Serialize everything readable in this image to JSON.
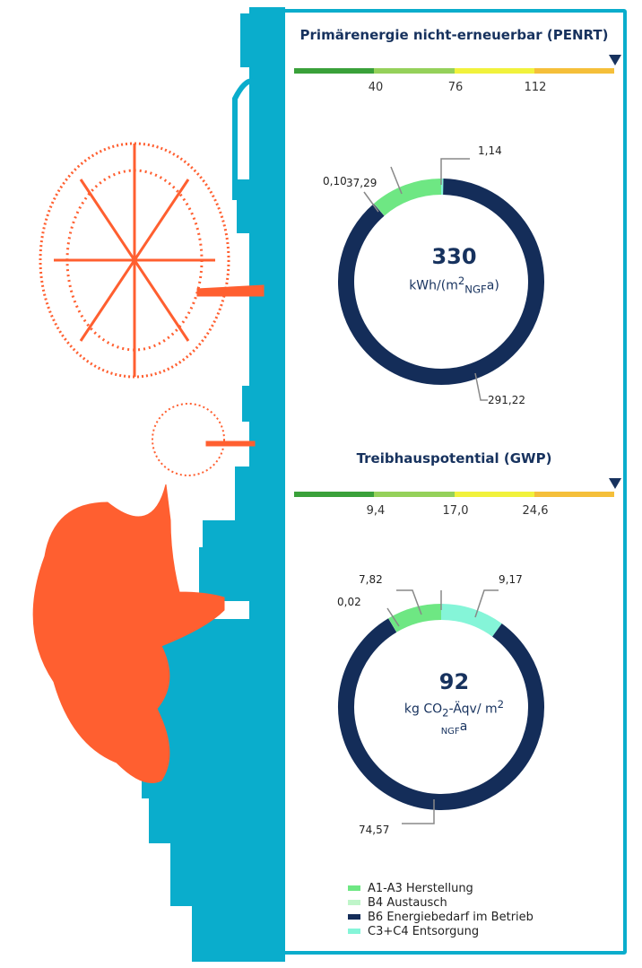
{
  "colors": {
    "a1_a3": "#6ee783",
    "b4": "#bff5c9",
    "b6": "#142d59",
    "c3_c4": "#85f5d8",
    "accent": "#0aadcc",
    "tree": "#ff5f30",
    "scale": [
      "#3aa13a",
      "#95d15a",
      "#f1f23c",
      "#f5bf3a"
    ]
  },
  "chart_data": [
    {
      "type": "donut",
      "title": "Primärenergie nicht-erneuerbar (PENRT)",
      "scale_ticks": [
        "40",
        "76",
        "112"
      ],
      "total_value": "330",
      "unit_main": "kWh/(m",
      "unit_sup": "2",
      "unit_sub": "NGF",
      "unit_tail": "a)",
      "series": [
        {
          "name": "A1-A3 Herstellung",
          "value": 37.29,
          "label": "37,29"
        },
        {
          "name": "B4 Austausch",
          "value": 0.1,
          "label": "0,10"
        },
        {
          "name": "B6 Energiebedarf im Betrieb",
          "value": 291.22,
          "label": "291,22"
        },
        {
          "name": "C3+C4 Entsorgung",
          "value": 1.14,
          "label": "1,14"
        }
      ]
    },
    {
      "type": "donut",
      "title": "Treibhauspotential (GWP)",
      "scale_ticks": [
        "9,4",
        "17,0",
        "24,6"
      ],
      "total_value": "92",
      "unit_line1": "kg CO",
      "unit_co2sub": "2",
      "unit_line1b": "-Äqv/ m",
      "unit_sup": "2",
      "unit_sub": "NGF",
      "unit_tail": "a",
      "series": [
        {
          "name": "A1-A3 Herstellung",
          "value": 7.82,
          "label": "7,82"
        },
        {
          "name": "B4 Austausch",
          "value": 0.02,
          "label": "0,02"
        },
        {
          "name": "B6 Energiebedarf im Betrieb",
          "value": 74.57,
          "label": "74,57"
        },
        {
          "name": "C3+C4 Entsorgung",
          "value": 9.17,
          "label": "9,17"
        }
      ]
    }
  ],
  "legend": [
    {
      "label": "A1-A3 Herstellung",
      "color": "#6ee783"
    },
    {
      "label": "B4 Austausch",
      "color": "#bff5c9"
    },
    {
      "label": "B6 Energiebedarf im Betrieb",
      "color": "#142d59"
    },
    {
      "label": "C3+C4 Entsorgung",
      "color": "#85f5d8"
    }
  ]
}
